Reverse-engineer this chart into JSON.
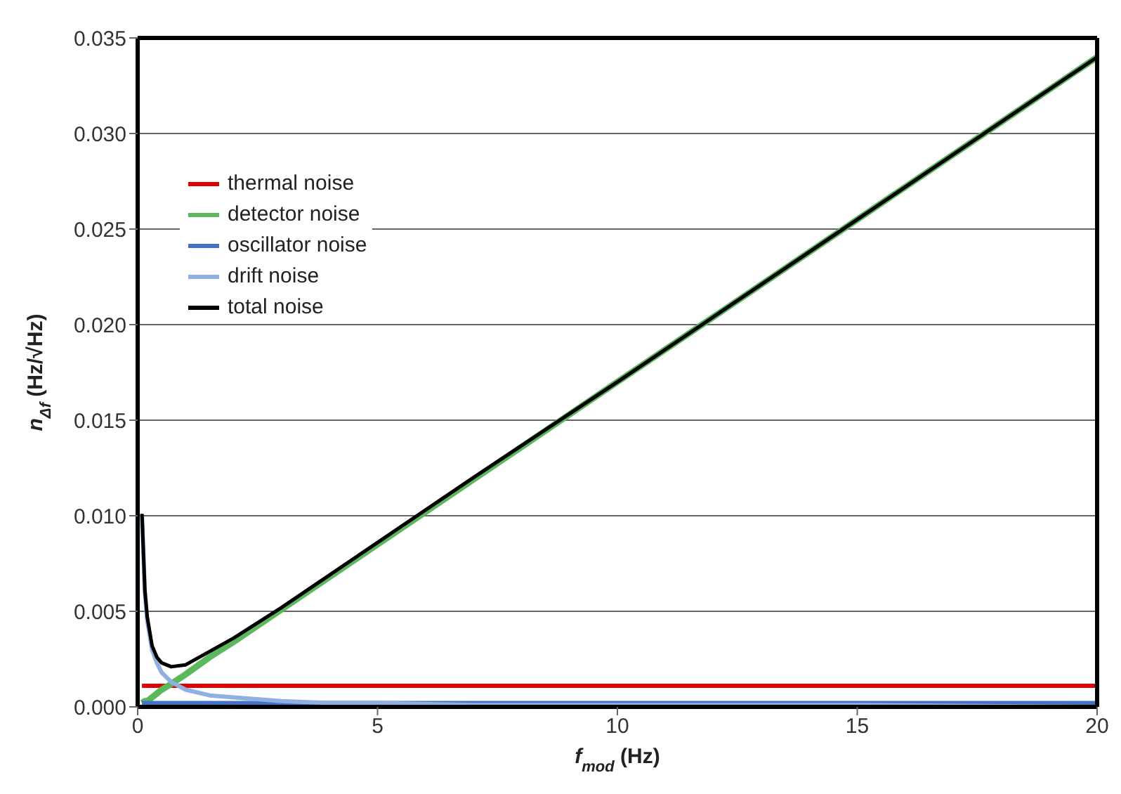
{
  "chart_data": {
    "type": "line",
    "xlabel": "f$_{mod}$ (Hz)",
    "ylabel": "n$_{Δf}$ (Hz/√Hz)",
    "x": [
      0.09,
      0.15,
      0.2,
      0.3,
      0.4,
      0.5,
      0.7,
      1,
      1.5,
      2,
      3,
      4,
      5,
      7,
      10,
      15,
      20
    ],
    "series": [
      {
        "name": "thermal noise",
        "color": "#e00000",
        "values": [
          0.0011,
          0.0011,
          0.0011,
          0.0011,
          0.0011,
          0.0011,
          0.0011,
          0.0011,
          0.0011,
          0.0011,
          0.0011,
          0.0011,
          0.0011,
          0.0011,
          0.0011,
          0.0011,
          0.0011
        ]
      },
      {
        "name": "detector noise",
        "color": "#5cb85c",
        "values": [
          0.0002,
          0.0003,
          0.0003,
          0.0005,
          0.0007,
          0.0009,
          0.0012,
          0.0017,
          0.0026,
          0.0034,
          0.0051,
          0.0068,
          0.0085,
          0.0119,
          0.017,
          0.0255,
          0.034
        ]
      },
      {
        "name": "oscillator noise",
        "color": "#4472c4",
        "values": [
          0.0002,
          0.0002,
          0.0002,
          0.0002,
          0.0002,
          0.0002,
          0.0002,
          0.0002,
          0.0002,
          0.0002,
          0.0002,
          0.0002,
          0.0002,
          0.0002,
          0.0002,
          0.0002,
          0.0002
        ]
      },
      {
        "name": "drift noise",
        "color": "#8fb0e0",
        "values": [
          0.01,
          0.006,
          0.0045,
          0.003,
          0.0023,
          0.0018,
          0.0013,
          0.0009,
          0.0006,
          0.0005,
          0.0003,
          0.0002,
          0.0002,
          0.0001,
          0.0001,
          0.0001,
          0.0
        ]
      },
      {
        "name": "total noise",
        "color": "#000000",
        "values": [
          0.0101,
          0.0061,
          0.0047,
          0.0032,
          0.0026,
          0.0023,
          0.0021,
          0.0022,
          0.0029,
          0.0036,
          0.0052,
          0.0069,
          0.0086,
          0.012,
          0.017,
          0.0255,
          0.034
        ]
      }
    ],
    "xlim": [
      0,
      20
    ],
    "xticks": [
      0,
      5,
      10,
      15,
      20
    ],
    "ylim": [
      0,
      0.035
    ],
    "yticks": [
      {
        "value": 0,
        "label": "0.000"
      },
      0.005,
      {
        "value": 0.01,
        "label": "0.010"
      },
      0.015,
      {
        "value": 0.02,
        "label": "0.020"
      },
      0.025,
      {
        "value": 0.03,
        "label": "0.030"
      },
      0.035
    ],
    "grid": "y",
    "legend": "top left",
    "marker": "none",
    "line_style": "solid"
  }
}
